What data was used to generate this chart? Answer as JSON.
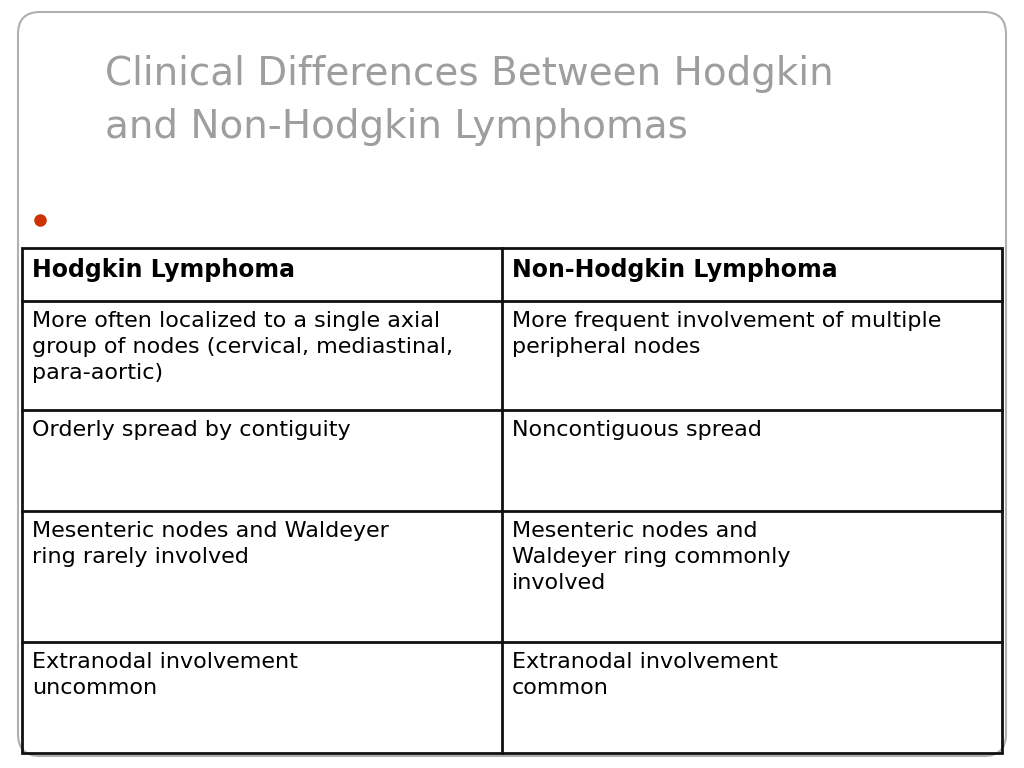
{
  "title_line1": "Clinical Differences Between Hodgkin",
  "title_line2": "and Non-Hodgkin Lymphomas",
  "title_color": "#9e9e9e",
  "title_fontsize": 28,
  "bg_color": "#ffffff",
  "border_color": "#b0b0b0",
  "table_border_color": "#111111",
  "bullet_color": "#cc3300",
  "header_left": "Hodgkin Lymphoma",
  "header_right": "Non-Hodgkin Lymphoma",
  "header_fontsize": 17,
  "cell_fontsize": 16,
  "rows": [
    [
      "More often localized to a single axial\ngroup of nodes (cervical, mediastinal,\npara-aortic)",
      "More frequent involvement of multiple\nperipheral nodes"
    ],
    [
      "Orderly spread by contiguity",
      "Noncontiguous spread"
    ],
    [
      "Mesenteric nodes and Waldeyer\nring rarely involved",
      "Mesenteric nodes and\nWaldeyer ring commonly\ninvolved"
    ],
    [
      "Extranodal involvement\nuncommon",
      "Extranodal involvement\ncommon"
    ]
  ],
  "fig_width": 10.24,
  "fig_height": 7.68,
  "dpi": 100
}
